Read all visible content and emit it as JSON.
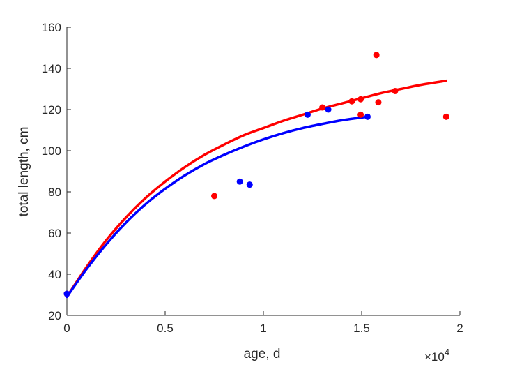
{
  "chart_data": {
    "type": "scatter",
    "xlabel": "age, d",
    "ylabel": "total length, cm",
    "x_exponent_label": "×10",
    "x_exponent_power": "4",
    "xlim": [
      0,
      20000
    ],
    "ylim": [
      20,
      160
    ],
    "x_ticks": [
      0,
      5000,
      10000,
      15000,
      20000
    ],
    "x_tick_labels": [
      "0",
      "0.5",
      "1",
      "1.5",
      "2"
    ],
    "y_ticks": [
      20,
      40,
      60,
      80,
      100,
      120,
      140,
      160
    ],
    "y_tick_labels": [
      "20",
      "40",
      "60",
      "80",
      "100",
      "120",
      "140",
      "160"
    ],
    "grid": false,
    "colors": {
      "red": "#ff0000",
      "blue": "#0000ff",
      "axis": "#262626"
    },
    "scatter_series": [
      {
        "color": "#ff0000",
        "points": [
          {
            "x": 0,
            "y": 30.5
          },
          {
            "x": 7500,
            "y": 78
          },
          {
            "x": 13000,
            "y": 121
          },
          {
            "x": 14500,
            "y": 124
          },
          {
            "x": 14950,
            "y": 125
          },
          {
            "x": 14950,
            "y": 117.5
          },
          {
            "x": 15750,
            "y": 146.5
          },
          {
            "x": 15850,
            "y": 123.5
          },
          {
            "x": 16700,
            "y": 129
          },
          {
            "x": 19300,
            "y": 116.5
          }
        ]
      },
      {
        "color": "#0000ff",
        "points": [
          {
            "x": 0,
            "y": 30.5
          },
          {
            "x": 8800,
            "y": 85
          },
          {
            "x": 9300,
            "y": 83.5
          },
          {
            "x": 12250,
            "y": 117.5
          },
          {
            "x": 13300,
            "y": 120
          },
          {
            "x": 15300,
            "y": 116.5
          }
        ]
      }
    ],
    "curve_series": [
      {
        "color": "#ff0000",
        "points": [
          {
            "x": 0,
            "y": 29
          },
          {
            "x": 1000,
            "y": 43.5
          },
          {
            "x": 2000,
            "y": 56.5
          },
          {
            "x": 3000,
            "y": 67.5
          },
          {
            "x": 4000,
            "y": 77
          },
          {
            "x": 5000,
            "y": 85
          },
          {
            "x": 6000,
            "y": 92
          },
          {
            "x": 7000,
            "y": 98
          },
          {
            "x": 8000,
            "y": 103
          },
          {
            "x": 9000,
            "y": 107.5
          },
          {
            "x": 10000,
            "y": 111
          },
          {
            "x": 11000,
            "y": 114.5
          },
          {
            "x": 12000,
            "y": 117.5
          },
          {
            "x": 13000,
            "y": 120.5
          },
          {
            "x": 14000,
            "y": 123
          },
          {
            "x": 15000,
            "y": 125.5
          },
          {
            "x": 16000,
            "y": 128
          },
          {
            "x": 17000,
            "y": 130
          },
          {
            "x": 18000,
            "y": 132
          },
          {
            "x": 19300,
            "y": 134
          }
        ]
      },
      {
        "color": "#0000ff",
        "points": [
          {
            "x": 0,
            "y": 29
          },
          {
            "x": 1000,
            "y": 42.5
          },
          {
            "x": 2000,
            "y": 54.5
          },
          {
            "x": 3000,
            "y": 65
          },
          {
            "x": 4000,
            "y": 74
          },
          {
            "x": 5000,
            "y": 81.5
          },
          {
            "x": 6000,
            "y": 88
          },
          {
            "x": 7000,
            "y": 93.5
          },
          {
            "x": 8000,
            "y": 98
          },
          {
            "x": 9000,
            "y": 102
          },
          {
            "x": 10000,
            "y": 105.5
          },
          {
            "x": 11000,
            "y": 108.5
          },
          {
            "x": 12000,
            "y": 111
          },
          {
            "x": 13000,
            "y": 113
          },
          {
            "x": 14000,
            "y": 114.8
          },
          {
            "x": 15300,
            "y": 116.5
          }
        ]
      }
    ]
  }
}
